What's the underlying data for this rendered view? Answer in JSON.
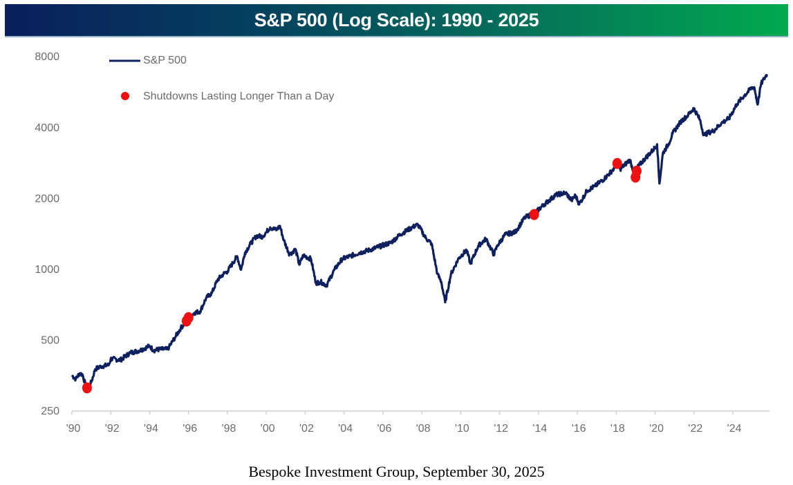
{
  "chart_data": {
    "type": "line",
    "title": "S&P 500 (Log Scale): 1990 - 2025",
    "xlabel": "",
    "ylabel": "",
    "yscale": "log",
    "ylim": [
      250,
      8000
    ],
    "xlim": [
      1990,
      2025.75
    ],
    "yticks": [
      8000,
      4000,
      2000,
      1000,
      500,
      250
    ],
    "ytick_labels": [
      "8000",
      "4000",
      "2000",
      "1000",
      "500",
      "250"
    ],
    "xticks": [
      1990,
      1992,
      1994,
      1996,
      1998,
      2000,
      2002,
      2004,
      2006,
      2008,
      2010,
      2012,
      2014,
      2016,
      2018,
      2020,
      2022,
      2024
    ],
    "xtick_labels": [
      "'90",
      "'92",
      "'94",
      "'96",
      "'98",
      "'00",
      "'02",
      "'04",
      "'06",
      "'08",
      "'10",
      "'12",
      "'14",
      "'16",
      "'18",
      "'20",
      "'22",
      "'24"
    ],
    "grid": false,
    "legend_position": "top-left",
    "legend": [
      {
        "name": "S&P 500",
        "marker": "line",
        "color": "#0d1f5c"
      },
      {
        "name": "Shutdowns Lasting Longer Than a Day",
        "marker": "dot",
        "color": "#ee1111"
      }
    ],
    "series": [
      {
        "name": "S&P 500",
        "color": "#0d1f5c",
        "x": [
          1990.0,
          1990.2,
          1990.4,
          1990.55,
          1990.7,
          1990.8,
          1991.0,
          1991.2,
          1991.5,
          1991.9,
          1992.0,
          1992.5,
          1993.0,
          1993.5,
          1994.0,
          1994.2,
          1994.5,
          1994.9,
          1995.0,
          1995.3,
          1995.6,
          1995.9,
          1996.0,
          1996.3,
          1996.6,
          1996.9,
          1997.2,
          1997.5,
          1997.8,
          1998.0,
          1998.5,
          1998.7,
          1998.9,
          1999.2,
          1999.5,
          1999.8,
          2000.0,
          2000.2,
          2000.5,
          2000.7,
          2000.9,
          2001.2,
          2001.5,
          2001.7,
          2001.9,
          2002.3,
          2002.55,
          2002.8,
          2003.1,
          2003.5,
          2003.9,
          2004.3,
          2004.8,
          2005.3,
          2005.9,
          2006.4,
          2006.9,
          2007.5,
          2007.8,
          2008.2,
          2008.5,
          2008.8,
          2009.0,
          2009.2,
          2009.5,
          2009.9,
          2010.3,
          2010.5,
          2010.9,
          2011.3,
          2011.7,
          2011.9,
          2012.3,
          2012.8,
          2013.3,
          2013.8,
          2014.3,
          2014.9,
          2015.4,
          2015.7,
          2015.9,
          2016.1,
          2016.5,
          2016.9,
          2017.4,
          2017.9,
          2018.05,
          2018.2,
          2018.7,
          2018.98,
          2019.1,
          2019.5,
          2019.9,
          2020.1,
          2020.22,
          2020.4,
          2020.7,
          2020.9,
          2021.3,
          2021.7,
          2021.99,
          2022.3,
          2022.5,
          2022.8,
          2023.0,
          2023.4,
          2023.8,
          2024.2,
          2024.6,
          2024.99,
          2025.1,
          2025.27,
          2025.45,
          2025.6,
          2025.75
        ],
        "y": [
          353,
          340,
          360,
          355,
          320,
          310,
          330,
          375,
          385,
          390,
          415,
          410,
          440,
          450,
          470,
          450,
          455,
          455,
          465,
          510,
          560,
          600,
          615,
          650,
          660,
          750,
          790,
          900,
          950,
          975,
          1130,
          990,
          1170,
          1280,
          1380,
          1370,
          1430,
          1500,
          1460,
          1520,
          1320,
          1150,
          1210,
          1040,
          1140,
          1100,
          870,
          880,
          850,
          990,
          1100,
          1130,
          1170,
          1200,
          1250,
          1290,
          1400,
          1500,
          1540,
          1350,
          1280,
          950,
          880,
          720,
          950,
          1110,
          1200,
          1050,
          1250,
          1340,
          1150,
          1260,
          1400,
          1430,
          1650,
          1720,
          1880,
          2060,
          2100,
          1950,
          2050,
          1880,
          2150,
          2240,
          2420,
          2670,
          2820,
          2650,
          2900,
          2450,
          2700,
          2950,
          3200,
          3380,
          2300,
          3100,
          3400,
          3750,
          4200,
          4500,
          4800,
          4300,
          3700,
          3800,
          3850,
          4150,
          4350,
          5000,
          5450,
          5900,
          5900,
          4980,
          6100,
          6400,
          6700
        ]
      },
      {
        "name": "Shutdowns Lasting Longer Than a Day",
        "type": "scatter",
        "color": "#ee1111",
        "x": [
          1990.78,
          1995.9,
          1996.0,
          2013.78,
          2018.05,
          2018.99,
          2019.05
        ],
        "y": [
          312,
          600,
          620,
          1700,
          2800,
          2450,
          2600
        ]
      }
    ]
  },
  "header": {
    "title": "S&P 500 (Log Scale): 1990 - 2025"
  },
  "footer": {
    "source": "Bespoke Investment Group, September 30, 2025"
  }
}
